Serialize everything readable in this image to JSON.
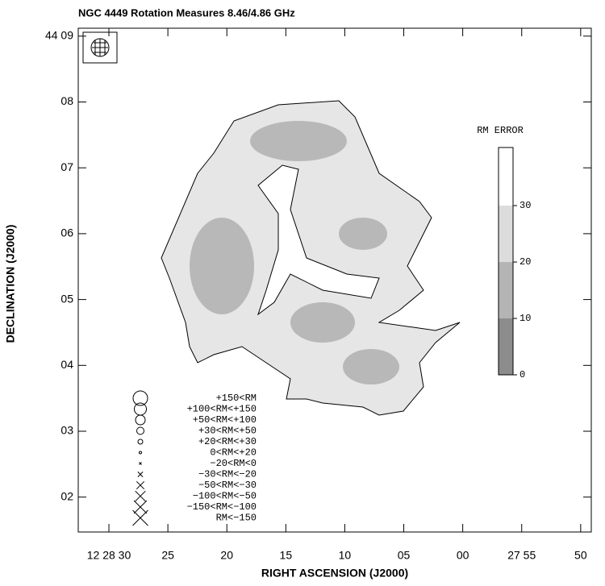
{
  "chart_data": {
    "type": "map",
    "title": "NGC 4449 Rotation Measures 8.46/4.86 GHz",
    "xlabel": "RIGHT ASCENSION (J2000)",
    "ylabel": "DECLINATION (J2000)",
    "xlim": [
      32.6,
      -10.9
    ],
    "ylim": [
      1.47,
      9.12
    ],
    "xticks": [
      {
        "value": 30,
        "label": "12 28 30"
      },
      25,
      20,
      15,
      10,
      {
        "value": 5,
        "label": "05"
      },
      {
        "value": 0,
        "label": "00"
      },
      {
        "value": -5,
        "label": "27 55"
      },
      {
        "value": -10,
        "label": "50"
      }
    ],
    "yticks": [
      {
        "value": 9,
        "label": "44 09"
      },
      {
        "value": 8,
        "label": "08"
      },
      {
        "value": 7,
        "label": "07"
      },
      {
        "value": 6,
        "label": "06"
      },
      {
        "value": 5,
        "label": "05"
      },
      {
        "value": 4,
        "label": "04"
      },
      {
        "value": 3,
        "label": "03"
      },
      {
        "value": 2,
        "label": "02"
      }
    ],
    "colorbar": {
      "label": "RM ERROR",
      "lim": [
        0,
        40.3
      ],
      "ticks": [
        0,
        10,
        20,
        30
      ],
      "colors": [
        "#8c8c8c",
        "#b4b4b4",
        "#dcdcdc",
        "#ffffff"
      ]
    },
    "legend": [
      {
        "label": "+150<RM",
        "symbol": "circle"
      },
      {
        "label": "+100<RM<+150",
        "symbol": "circle"
      },
      {
        "label": "+50<RM<+100",
        "symbol": "circle"
      },
      {
        "label": "+30<RM<+50",
        "symbol": "circle"
      },
      {
        "label": "+20<RM<+30",
        "symbol": "circle"
      },
      {
        "label": "0<RM<+20",
        "symbol": "circle"
      },
      {
        "label": "−20<RM<0",
        "symbol": "cross"
      },
      {
        "label": "−30<RM<−20",
        "symbol": "cross"
      },
      {
        "label": "−50<RM<−30",
        "symbol": "cross"
      },
      {
        "label": "−100<RM<−50",
        "symbol": "cross"
      },
      {
        "label": "−150<RM<−100",
        "symbol": "cross"
      },
      {
        "label": "RM<−150",
        "symbol": "cross"
      }
    ]
  }
}
